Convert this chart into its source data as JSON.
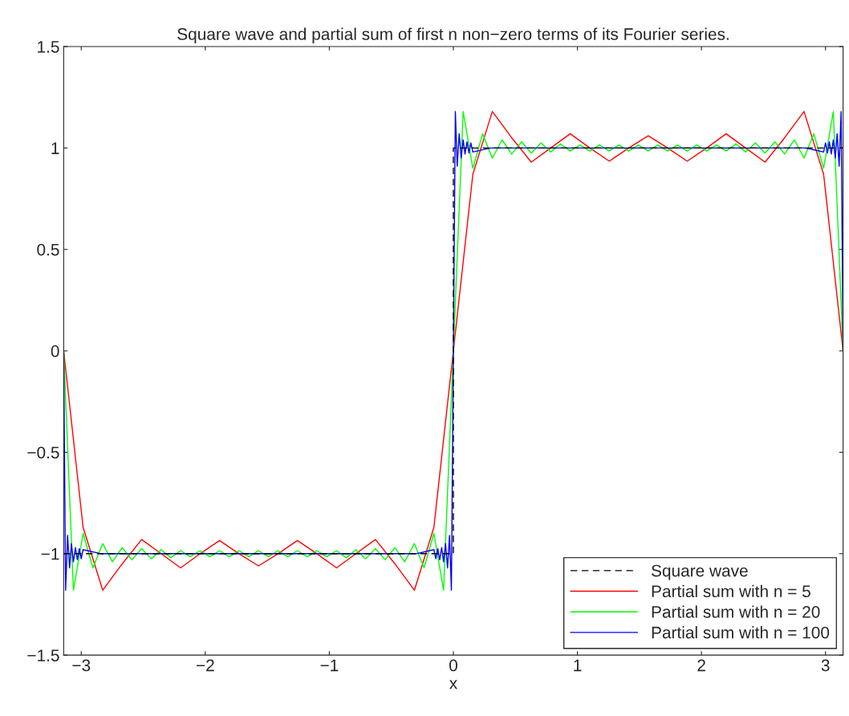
{
  "chart_data": {
    "type": "line",
    "title": "Square wave and partial sum of first n non−zero terms of its Fourier series.",
    "xlabel": "x",
    "xlim": [
      -3.1416,
      3.1416
    ],
    "xticks": [
      -3,
      -2,
      -1,
      0,
      1,
      2,
      3
    ],
    "ylim": [
      -1.5,
      1.5
    ],
    "yticks": [
      -1.5,
      -1,
      -0.5,
      0,
      0.5,
      1,
      1.5
    ],
    "grid": false,
    "legend": "bottom right",
    "series": [
      {
        "name": "Square wave",
        "color": "#000000",
        "line_style": "dashed",
        "x": [
          -3.1416,
          0,
          0,
          3.1416
        ],
        "values": [
          -1,
          -1,
          1,
          1
        ]
      },
      {
        "name": "Partial sum with n = 5",
        "color": "#ff0000",
        "line_style": "solid",
        "x": [
          -3.1416,
          -2.985,
          -2.827,
          -2.67,
          -2.513,
          -2.356,
          -2.199,
          -2.042,
          -1.885,
          -1.728,
          -1.571,
          -1.414,
          -1.257,
          -1.1,
          -0.942,
          -0.785,
          -0.628,
          -0.471,
          -0.314,
          -0.157,
          0,
          0.157,
          0.314,
          0.471,
          0.628,
          0.785,
          0.942,
          1.1,
          1.257,
          1.414,
          1.571,
          1.728,
          1.885,
          2.042,
          2.199,
          2.356,
          2.513,
          2.67,
          2.827,
          2.985,
          3.1416
        ],
        "values": [
          0,
          -0.87,
          -1.18,
          -1.05,
          -0.93,
          -1.0,
          -1.07,
          -1.0,
          -0.935,
          -1.0,
          -1.06,
          -1.0,
          -0.935,
          -1.0,
          -1.07,
          -1.0,
          -0.93,
          -1.05,
          -1.18,
          -0.87,
          0,
          0.87,
          1.18,
          1.05,
          0.93,
          1.0,
          1.07,
          1.0,
          0.935,
          1.0,
          1.06,
          1.0,
          0.935,
          1.0,
          1.07,
          1.0,
          0.93,
          1.05,
          1.18,
          0.87,
          0
        ]
      },
      {
        "name": "Partial sum with n = 20",
        "color": "#00ff00",
        "line_style": "solid",
        "x": [
          -3.1416,
          -3.063,
          -2.985,
          -2.906,
          -2.827,
          -2.749,
          -2.67,
          -2.592,
          -2.513,
          -2.435,
          -2.356,
          -2.278,
          -2.199,
          -2.121,
          -2.042,
          -1.963,
          -1.885,
          -1.806,
          -1.728,
          -1.649,
          -1.571,
          -1.492,
          -1.414,
          -1.335,
          -1.257,
          -1.178,
          -1.1,
          -1.021,
          -0.942,
          -0.864,
          -0.785,
          -0.707,
          -0.628,
          -0.55,
          -0.471,
          -0.393,
          -0.314,
          -0.236,
          -0.157,
          -0.079,
          0,
          0.079,
          0.157,
          0.236,
          0.314,
          0.393,
          0.471,
          0.55,
          0.628,
          0.707,
          0.785,
          0.864,
          0.942,
          1.021,
          1.1,
          1.178,
          1.257,
          1.335,
          1.414,
          1.492,
          1.571,
          1.649,
          1.728,
          1.806,
          1.885,
          1.963,
          2.042,
          2.121,
          2.199,
          2.278,
          2.356,
          2.435,
          2.513,
          2.592,
          2.67,
          2.749,
          2.827,
          2.906,
          2.985,
          3.063,
          3.1416
        ],
        "values": [
          0,
          -1.18,
          -0.9,
          -1.07,
          -0.95,
          -1.04,
          -0.97,
          -1.03,
          -0.975,
          -1.025,
          -0.98,
          -1.02,
          -0.985,
          -1.015,
          -0.985,
          -1.015,
          -0.985,
          -1.015,
          -0.985,
          -1.015,
          -0.985,
          -1.015,
          -0.985,
          -1.015,
          -0.985,
          -1.015,
          -0.985,
          -1.015,
          -0.985,
          -1.02,
          -0.98,
          -1.025,
          -0.975,
          -1.03,
          -0.97,
          -1.04,
          -0.95,
          -1.07,
          -0.9,
          -1.18,
          0,
          1.18,
          0.9,
          1.07,
          0.95,
          1.04,
          0.97,
          1.03,
          0.975,
          1.025,
          0.98,
          1.02,
          0.985,
          1.015,
          0.985,
          1.015,
          0.985,
          1.015,
          0.985,
          1.015,
          0.985,
          1.015,
          0.985,
          1.015,
          0.985,
          1.015,
          0.985,
          1.015,
          0.985,
          1.02,
          0.98,
          1.025,
          0.975,
          1.03,
          0.97,
          1.04,
          0.95,
          1.07,
          0.9,
          1.18,
          0
        ]
      },
      {
        "name": "Partial sum with n = 100",
        "color": "#0000ff",
        "line_style": "solid",
        "x": [
          -3.1416,
          -3.126,
          -3.11,
          -3.094,
          -3.079,
          -3.063,
          -3.047,
          -3.031,
          -3.016,
          -3.0,
          -2.985,
          -2.84,
          -1.571,
          -0.3,
          -0.157,
          -0.141,
          -0.126,
          -0.11,
          -0.094,
          -0.079,
          -0.063,
          -0.047,
          -0.031,
          -0.016,
          0,
          0.016,
          0.031,
          0.047,
          0.063,
          0.079,
          0.094,
          0.11,
          0.126,
          0.141,
          0.157,
          0.3,
          1.571,
          2.84,
          2.985,
          3.0,
          3.016,
          3.031,
          3.047,
          3.063,
          3.079,
          3.094,
          3.11,
          3.126,
          3.1416
        ],
        "values": [
          0,
          -1.18,
          -0.91,
          -1.07,
          -0.95,
          -1.04,
          -0.97,
          -1.03,
          -0.975,
          -1.025,
          -0.98,
          -1.0,
          -1.0,
          -1.0,
          -0.98,
          -1.025,
          -0.975,
          -1.03,
          -0.97,
          -1.04,
          -0.95,
          -1.07,
          -0.91,
          -1.18,
          0,
          1.18,
          0.91,
          1.07,
          0.95,
          1.04,
          0.97,
          1.03,
          0.975,
          1.025,
          0.98,
          1.0,
          1.0,
          1.0,
          0.98,
          1.025,
          0.975,
          1.03,
          0.97,
          1.04,
          0.95,
          1.07,
          0.91,
          1.18,
          0
        ]
      }
    ]
  }
}
